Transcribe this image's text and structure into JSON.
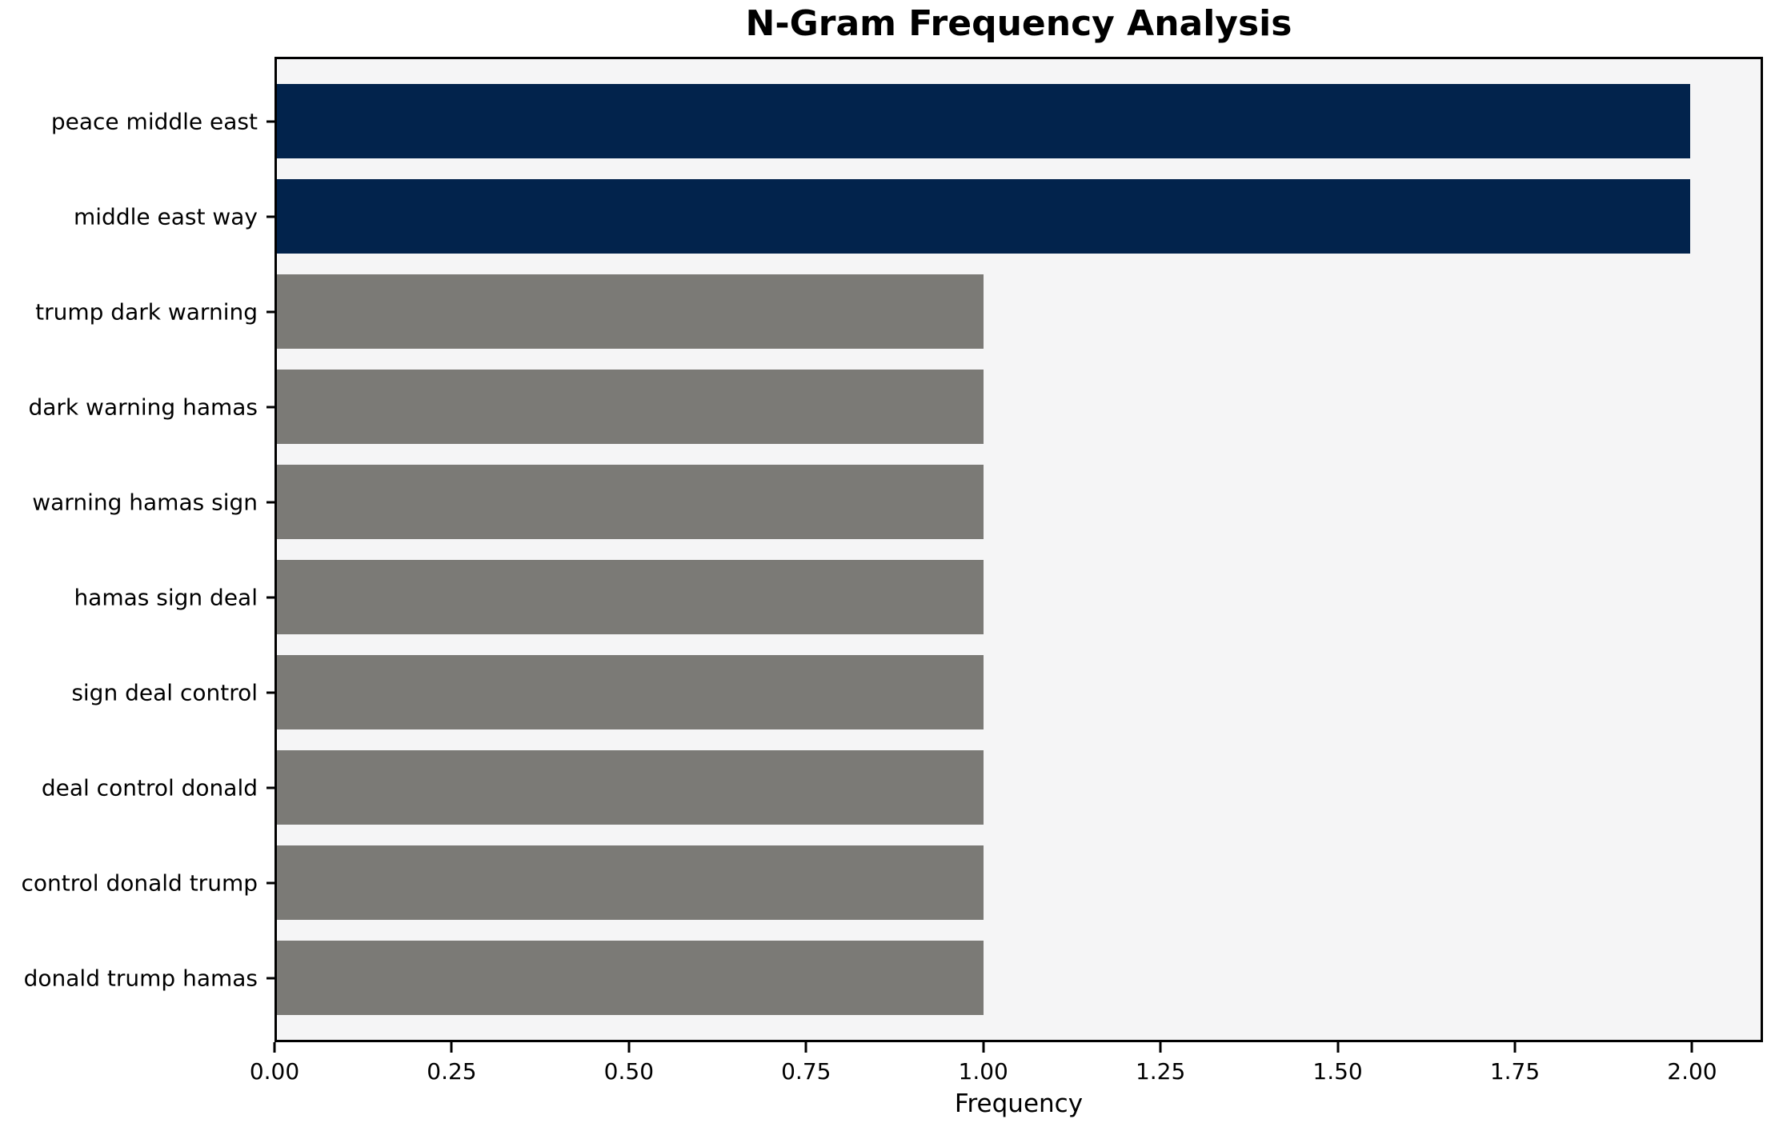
{
  "chart_data": {
    "type": "bar",
    "orientation": "horizontal",
    "title": "N-Gram Frequency Analysis",
    "xlabel": "Frequency",
    "ylabel": "",
    "categories": [
      "peace middle east",
      "middle east way",
      "trump dark warning",
      "dark warning hamas",
      "warning hamas sign",
      "hamas sign deal",
      "sign deal control",
      "deal control donald",
      "control donald trump",
      "donald trump hamas"
    ],
    "values": [
      2,
      2,
      1,
      1,
      1,
      1,
      1,
      1,
      1,
      1
    ],
    "bar_colors": [
      "#02234C",
      "#02234C",
      "#7B7A76",
      "#7B7A76",
      "#7B7A76",
      "#7B7A76",
      "#7B7A76",
      "#7B7A76",
      "#7B7A76",
      "#7B7A76"
    ],
    "xlim": [
      0,
      2.1
    ],
    "xticks": [
      0,
      0.25,
      0.5,
      0.75,
      1.0,
      1.25,
      1.5,
      1.75,
      2.0
    ],
    "xtick_labels": [
      "0.00",
      "0.25",
      "0.50",
      "0.75",
      "1.00",
      "1.25",
      "1.50",
      "1.75",
      "2.00"
    ],
    "grid": false,
    "legend_position": "none",
    "colors": {
      "highlight_bar": "#02234C",
      "default_bar": "#7B7A76",
      "plot_background": "#F5F5F6",
      "figure_background": "#FFFFFF",
      "spine": "#000000",
      "text": "#000000"
    }
  }
}
